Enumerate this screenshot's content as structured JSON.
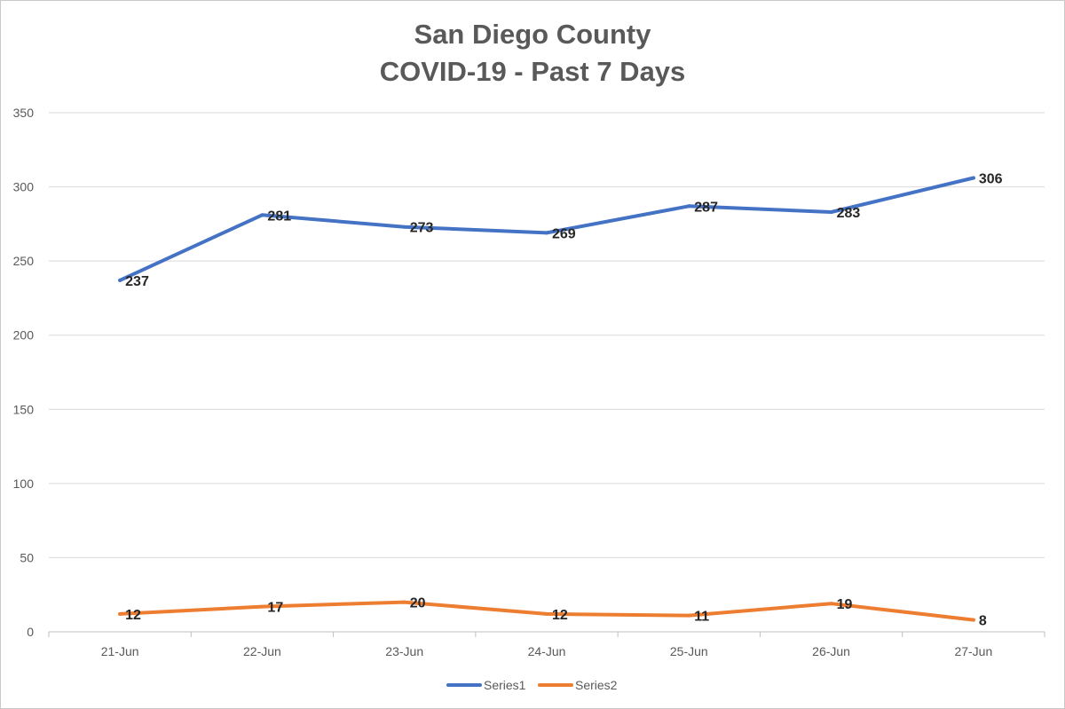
{
  "chart_data": {
    "type": "line",
    "title": "San Diego County",
    "subtitle": "COVID-19 - Past 7 Days",
    "categories": [
      "21-Jun",
      "22-Jun",
      "23-Jun",
      "24-Jun",
      "25-Jun",
      "26-Jun",
      "27-Jun"
    ],
    "series": [
      {
        "name": "Series1",
        "values": [
          237,
          281,
          273,
          269,
          287,
          283,
          306
        ],
        "color": "#4472C4"
      },
      {
        "name": "Series2",
        "values": [
          12,
          17,
          20,
          12,
          11,
          19,
          8
        ],
        "color": "#ED7D31"
      }
    ],
    "ylim": [
      0,
      350
    ],
    "yticks": [
      0,
      50,
      100,
      150,
      200,
      250,
      300,
      350
    ],
    "grid": true,
    "legend": "bottom",
    "xlabel": "",
    "ylabel": ""
  }
}
